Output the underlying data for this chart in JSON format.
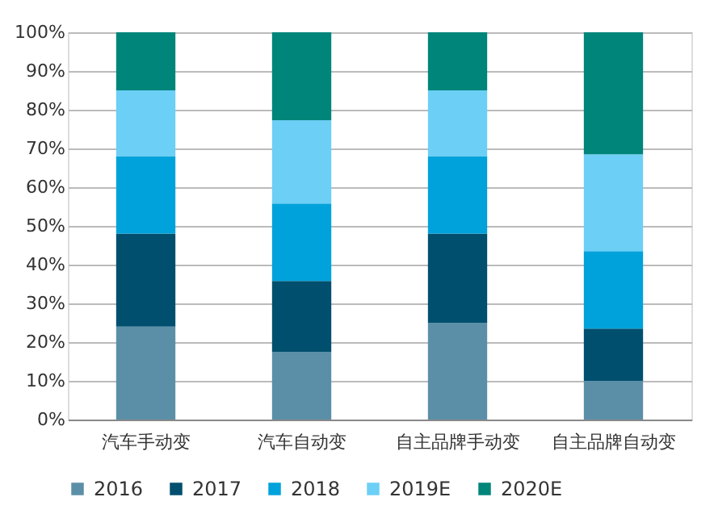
{
  "chart_data": {
    "type": "bar",
    "stacked": true,
    "categories": [
      "汽车手动变",
      "汽车自动变",
      "自主品牌手动变",
      "自主品牌自动变"
    ],
    "series": [
      {
        "name": "2016",
        "color": "#5b8fa8",
        "values": [
          24,
          17.5,
          25,
          10
        ]
      },
      {
        "name": "2017",
        "color": "#004f6e",
        "values": [
          24,
          18.3,
          23,
          13.5
        ]
      },
      {
        "name": "2018",
        "color": "#00a2db",
        "values": [
          20,
          20,
          20,
          20
        ]
      },
      {
        "name": "2019E",
        "color": "#6ccff6",
        "values": [
          17,
          21.5,
          17,
          25
        ]
      },
      {
        "name": "2020E",
        "color": "#00857a",
        "values": [
          15,
          22.7,
          15,
          31.5
        ]
      }
    ],
    "ylim": [
      0,
      100
    ],
    "yticks": [
      {
        "value": 0,
        "label": "0%"
      },
      {
        "value": 10,
        "label": "10%"
      },
      {
        "value": 20,
        "label": "20%"
      },
      {
        "value": 30,
        "label": "30%"
      },
      {
        "value": 40,
        "label": "40%"
      },
      {
        "value": 50,
        "label": "50%"
      },
      {
        "value": 60,
        "label": "60%"
      },
      {
        "value": 70,
        "label": "70%"
      },
      {
        "value": 80,
        "label": "80%"
      },
      {
        "value": 90,
        "label": "90%"
      },
      {
        "value": 100,
        "label": "100%"
      }
    ],
    "grid": "y",
    "legend": "bottom"
  }
}
